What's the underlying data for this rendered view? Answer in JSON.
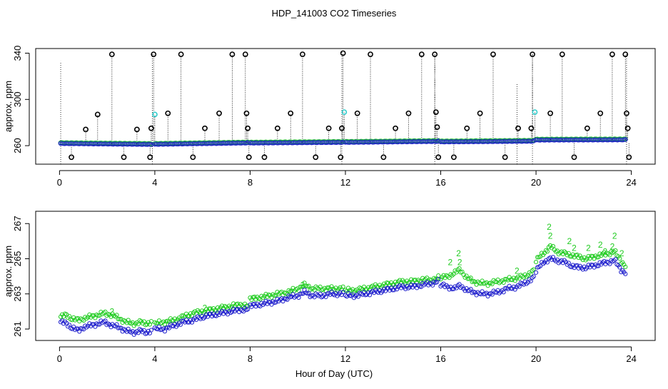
{
  "chart_data": {
    "type": "scatter",
    "title": "HDP_141003  CO2 Timeseries",
    "xlabel": "Hour of Day (UTC)",
    "colors": {
      "axis": "#000000",
      "blue": "#1f1fcc",
      "green": "#22cc22",
      "cyan": "#33cccc",
      "black": "#000000"
    },
    "panels": [
      {
        "id": "top",
        "ylabel": "approx. ppm",
        "xlim": [
          -1,
          25
        ],
        "ylim": [
          244,
          344
        ],
        "xticks": [
          0,
          4,
          8,
          12,
          16,
          20,
          24
        ],
        "yticks": [
          260,
          300,
          340
        ],
        "baseline_segments": [
          {
            "x0": 0.05,
            "x1": 3.85,
            "y0": 262.0,
            "y1": 261.2
          },
          {
            "x0": 4.0,
            "x1": 7.9,
            "y0": 261.3,
            "y1": 262.5
          },
          {
            "x0": 8.0,
            "x1": 11.9,
            "y0": 262.4,
            "y1": 263.0
          },
          {
            "x0": 12.0,
            "x1": 15.9,
            "y0": 263.0,
            "y1": 263.8
          },
          {
            "x0": 16.0,
            "x1": 19.9,
            "y0": 263.4,
            "y1": 264.0
          },
          {
            "x0": 20.0,
            "x1": 23.75,
            "y0": 265.0,
            "y1": 265.2
          }
        ],
        "spikes_black": [
          {
            "x": 0.5,
            "y": 250
          },
          {
            "x": 1.1,
            "y": 274
          },
          {
            "x": 1.6,
            "y": 287
          },
          {
            "x": 2.2,
            "y": 339
          },
          {
            "x": 2.7,
            "y": 250
          },
          {
            "x": 3.25,
            "y": 274
          },
          {
            "x": 3.8,
            "y": 250
          },
          {
            "x": 3.85,
            "y": 275
          },
          {
            "x": 3.95,
            "y": 339
          },
          {
            "x": 4.55,
            "y": 288
          },
          {
            "x": 5.1,
            "y": 339
          },
          {
            "x": 5.6,
            "y": 250
          },
          {
            "x": 6.1,
            "y": 275
          },
          {
            "x": 6.7,
            "y": 288
          },
          {
            "x": 7.25,
            "y": 339
          },
          {
            "x": 7.8,
            "y": 339
          },
          {
            "x": 7.85,
            "y": 288
          },
          {
            "x": 7.9,
            "y": 275
          },
          {
            "x": 7.95,
            "y": 250
          },
          {
            "x": 8.6,
            "y": 250
          },
          {
            "x": 9.15,
            "y": 275
          },
          {
            "x": 9.7,
            "y": 288
          },
          {
            "x": 10.2,
            "y": 339
          },
          {
            "x": 10.75,
            "y": 250
          },
          {
            "x": 11.3,
            "y": 275
          },
          {
            "x": 11.8,
            "y": 250
          },
          {
            "x": 11.85,
            "y": 275
          },
          {
            "x": 11.9,
            "y": 340
          },
          {
            "x": 12.5,
            "y": 288
          },
          {
            "x": 13.05,
            "y": 339
          },
          {
            "x": 13.6,
            "y": 250
          },
          {
            "x": 14.1,
            "y": 275
          },
          {
            "x": 14.65,
            "y": 288
          },
          {
            "x": 15.2,
            "y": 339
          },
          {
            "x": 15.75,
            "y": 339
          },
          {
            "x": 15.8,
            "y": 289
          },
          {
            "x": 15.85,
            "y": 276
          },
          {
            "x": 15.9,
            "y": 250
          },
          {
            "x": 16.55,
            "y": 250
          },
          {
            "x": 17.1,
            "y": 275
          },
          {
            "x": 17.65,
            "y": 288
          },
          {
            "x": 18.2,
            "y": 339
          },
          {
            "x": 18.7,
            "y": 250
          },
          {
            "x": 19.25,
            "y": 275
          },
          {
            "x": 19.8,
            "y": 275
          },
          {
            "x": 19.85,
            "y": 339
          },
          {
            "x": 20.6,
            "y": 288
          },
          {
            "x": 21.1,
            "y": 339
          },
          {
            "x": 21.6,
            "y": 250
          },
          {
            "x": 22.15,
            "y": 275
          },
          {
            "x": 22.7,
            "y": 288
          },
          {
            "x": 23.2,
            "y": 339
          },
          {
            "x": 23.75,
            "y": 339
          },
          {
            "x": 23.8,
            "y": 288
          },
          {
            "x": 23.85,
            "y": 275
          },
          {
            "x": 23.9,
            "y": 250
          }
        ],
        "spikes_cyan": [
          {
            "x": 4.0,
            "y": 287
          },
          {
            "x": 11.95,
            "y": 289
          },
          {
            "x": 19.95,
            "y": 289
          }
        ],
        "dotted_lines": [
          {
            "x": 0.05,
            "y0": 244,
            "y1": 333
          },
          {
            "x": 3.9,
            "y0": 244,
            "y1": 342
          },
          {
            "x": 11.85,
            "y0": 244,
            "y1": 342
          },
          {
            "x": 15.75,
            "y0": 244,
            "y1": 342
          },
          {
            "x": 19.2,
            "y0": 244,
            "y1": 314
          },
          {
            "x": 19.85,
            "y0": 244,
            "y1": 342
          },
          {
            "x": 23.8,
            "y0": 244,
            "y1": 342
          }
        ]
      },
      {
        "id": "bottom",
        "ylabel": "approx. ppm",
        "xlim": [
          -1,
          25
        ],
        "ylim": [
          260.35,
          267.7
        ],
        "xticks": [
          0,
          4,
          8,
          12,
          16,
          20,
          24
        ],
        "yticks": [
          261,
          263,
          265,
          267
        ],
        "blue_series": {
          "label": "3",
          "segments": [
            {
              "x": [
                0.05,
                0.3,
                0.5,
                0.8,
                1.0,
                1.3,
                1.6,
                1.9,
                2.2,
                2.5,
                2.8,
                3.1,
                3.4,
                3.6,
                3.85
              ],
              "y": [
                261.4,
                261.3,
                261.1,
                260.9,
                261.1,
                261.2,
                261.3,
                261.4,
                261.2,
                261.1,
                260.9,
                260.8,
                260.9,
                260.8,
                260.9
              ]
            },
            {
              "x": [
                4.0,
                4.4,
                4.8,
                5.2,
                5.6,
                6.0,
                6.4,
                6.8,
                7.2,
                7.6,
                7.9
              ],
              "y": [
                261.0,
                261.0,
                261.2,
                261.4,
                261.5,
                261.7,
                261.8,
                261.9,
                262.0,
                262.1,
                262.1
              ]
            },
            {
              "x": [
                8.0,
                8.4,
                8.8,
                9.2,
                9.6,
                10.0,
                10.3,
                10.6,
                11.0,
                11.4,
                11.9
              ],
              "y": [
                262.3,
                262.4,
                262.5,
                262.6,
                262.8,
                262.9,
                263.1,
                262.9,
                262.9,
                263.0,
                263.0
              ]
            },
            {
              "x": [
                12.0,
                12.4,
                12.8,
                13.2,
                13.6,
                14.0,
                14.4,
                14.8,
                15.2,
                15.6,
                15.9
              ],
              "y": [
                262.9,
                262.9,
                263.0,
                263.1,
                263.2,
                263.3,
                263.4,
                263.4,
                263.5,
                263.6,
                263.7
              ]
            },
            {
              "x": [
                16.0,
                16.3,
                16.6,
                16.8,
                17.1,
                17.4,
                17.7,
                18.0,
                18.4,
                18.8,
                19.2,
                19.5,
                19.9
              ],
              "y": [
                263.5,
                263.4,
                263.3,
                263.5,
                263.2,
                263.1,
                263.0,
                263.0,
                263.1,
                263.3,
                263.4,
                263.6,
                263.9
              ]
            },
            {
              "x": [
                20.0,
                20.3,
                20.6,
                20.9,
                21.2,
                21.5,
                21.8,
                22.1,
                22.4,
                22.7,
                23.0,
                23.3,
                23.55,
                23.75
              ],
              "y": [
                264.3,
                264.8,
                265.0,
                264.9,
                264.8,
                264.6,
                264.5,
                264.5,
                264.6,
                264.7,
                264.8,
                264.9,
                264.4,
                264.2
              ]
            }
          ]
        },
        "green_series": {
          "label": "2",
          "segments": [
            {
              "x": [
                0.05,
                0.3,
                0.5,
                0.8,
                1.0,
                1.3,
                1.6,
                1.9,
                2.2,
                2.5,
                2.8,
                3.1,
                3.4,
                3.6,
                3.85
              ],
              "y": [
                261.7,
                261.8,
                261.6,
                261.5,
                261.6,
                261.7,
                261.8,
                261.9,
                261.8,
                261.6,
                261.4,
                261.3,
                261.4,
                261.3,
                261.4
              ]
            },
            {
              "x": [
                4.0,
                4.4,
                4.8,
                5.2,
                5.6,
                6.0,
                6.4,
                6.8,
                7.2,
                7.6,
                7.9
              ],
              "y": [
                261.3,
                261.4,
                261.5,
                261.7,
                261.9,
                262.0,
                262.1,
                262.2,
                262.3,
                262.4,
                262.3
              ]
            },
            {
              "x": [
                8.0,
                8.4,
                8.8,
                9.2,
                9.6,
                10.0,
                10.3,
                10.6,
                11.0,
                11.4,
                11.9
              ],
              "y": [
                262.7,
                262.8,
                262.9,
                263.0,
                263.1,
                263.3,
                263.5,
                263.3,
                263.3,
                263.3,
                263.3
              ]
            },
            {
              "x": [
                12.0,
                12.4,
                12.8,
                13.2,
                13.6,
                14.0,
                14.4,
                14.8,
                15.2,
                15.6,
                15.9
              ],
              "y": [
                263.2,
                263.2,
                263.3,
                263.4,
                263.5,
                263.6,
                263.7,
                263.7,
                263.8,
                263.8,
                263.9
              ]
            },
            {
              "x": [
                16.0,
                16.3,
                16.6,
                16.8,
                17.1,
                17.4,
                17.7,
                18.0,
                18.4,
                18.8,
                19.2,
                19.5,
                19.9
              ],
              "y": [
                263.9,
                264.0,
                264.2,
                264.4,
                263.9,
                263.7,
                263.6,
                263.6,
                263.7,
                263.8,
                263.9,
                264.0,
                264.3
              ]
            },
            {
              "x": [
                20.0,
                20.3,
                20.6,
                20.9,
                21.2,
                21.5,
                21.8,
                22.1,
                22.4,
                22.7,
                23.0,
                23.3,
                23.55,
                23.75
              ],
              "y": [
                264.9,
                265.3,
                265.7,
                265.4,
                265.3,
                265.2,
                265.1,
                265.0,
                265.1,
                265.2,
                265.3,
                265.4,
                264.9,
                264.6
              ]
            }
          ],
          "peaks": [
            {
              "x": 2.2,
              "y": 262.0
            },
            {
              "x": 6.1,
              "y": 262.2
            },
            {
              "x": 10.2,
              "y": 263.5
            },
            {
              "x": 16.4,
              "y": 264.8
            },
            {
              "x": 16.75,
              "y": 265.3
            },
            {
              "x": 16.8,
              "y": 264.8
            },
            {
              "x": 19.2,
              "y": 264.3
            },
            {
              "x": 20.55,
              "y": 266.8
            },
            {
              "x": 20.6,
              "y": 266.3
            },
            {
              "x": 21.4,
              "y": 266.0
            },
            {
              "x": 21.6,
              "y": 265.6
            },
            {
              "x": 22.2,
              "y": 265.6
            },
            {
              "x": 22.7,
              "y": 265.8
            },
            {
              "x": 22.9,
              "y": 265.4
            },
            {
              "x": 23.2,
              "y": 265.7
            },
            {
              "x": 23.3,
              "y": 266.3
            },
            {
              "x": 23.6,
              "y": 265.3
            }
          ]
        }
      }
    ]
  }
}
